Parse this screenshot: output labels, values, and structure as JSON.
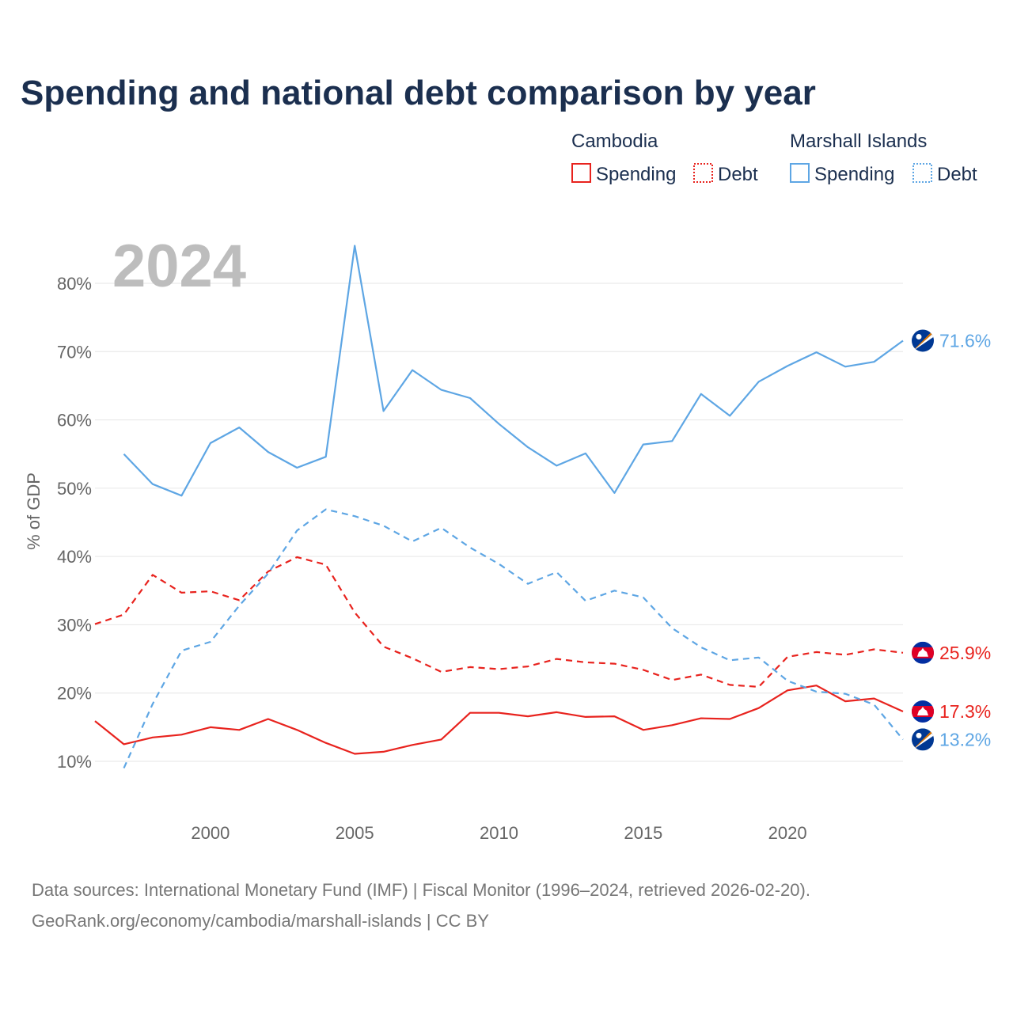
{
  "title": "Spending and national debt comparison by year",
  "year_label": "2024",
  "legend": {
    "groups": [
      {
        "name": "Cambodia",
        "color": "#e8231e",
        "items": [
          "Spending",
          "Debt"
        ]
      },
      {
        "name": "Marshall Islands",
        "color": "#5ea6e4",
        "items": [
          "Spending",
          "Debt"
        ]
      }
    ]
  },
  "source": {
    "line1": "Data sources: International Monetary Fund (IMF) | Fiscal Monitor (1996–2024, retrieved 2026-02-20).",
    "line2": "GeoRank.org/economy/cambodia/marshall-islands | CC BY"
  },
  "chart_data": {
    "type": "line",
    "ylabel": "% of GDP",
    "x_ticks": [
      2000,
      2005,
      2010,
      2015,
      2020
    ],
    "y_ticks": [
      10,
      20,
      30,
      40,
      50,
      60,
      70,
      80
    ],
    "y_tick_labels": [
      "10%",
      "20%",
      "30%",
      "40%",
      "50%",
      "60%",
      "70%",
      "80%"
    ],
    "xlim": [
      1996,
      2024
    ],
    "ylim": [
      10,
      80
    ],
    "grid": true,
    "series": [
      {
        "name": "Cambodia Spending",
        "country": "Cambodia",
        "metric": "Spending",
        "color": "#e8231e",
        "dashed": false,
        "flag": "cambodia-flag",
        "end_label": "17.3%",
        "x": [
          1996,
          1997,
          1998,
          1999,
          2000,
          2001,
          2002,
          2003,
          2004,
          2005,
          2006,
          2007,
          2008,
          2009,
          2010,
          2011,
          2012,
          2013,
          2014,
          2015,
          2016,
          2017,
          2018,
          2019,
          2020,
          2021,
          2022,
          2023,
          2024
        ],
        "values": [
          15.9,
          12.5,
          13.5,
          13.9,
          15.0,
          14.6,
          16.2,
          14.6,
          12.7,
          11.1,
          11.4,
          12.4,
          13.2,
          17.1,
          17.1,
          16.6,
          17.2,
          16.5,
          16.6,
          14.6,
          15.3,
          16.3,
          16.2,
          17.8,
          20.4,
          21.1,
          18.8,
          19.2,
          17.3
        ]
      },
      {
        "name": "Cambodia Debt",
        "country": "Cambodia",
        "metric": "Debt",
        "color": "#e8231e",
        "dashed": true,
        "flag": "cambodia-flag",
        "end_label": "25.9%",
        "x": [
          1996,
          1997,
          1998,
          1999,
          2000,
          2001,
          2002,
          2003,
          2004,
          2005,
          2006,
          2007,
          2008,
          2009,
          2010,
          2011,
          2012,
          2013,
          2014,
          2015,
          2016,
          2017,
          2018,
          2019,
          2020,
          2021,
          2022,
          2023,
          2024
        ],
        "values": [
          30.1,
          31.5,
          37.3,
          34.7,
          34.9,
          33.6,
          37.8,
          39.9,
          38.8,
          31.8,
          26.8,
          25.1,
          23.1,
          23.8,
          23.5,
          23.9,
          25.0,
          24.5,
          24.3,
          23.4,
          21.9,
          22.7,
          21.2,
          20.9,
          25.3,
          26.0,
          25.6,
          26.4,
          25.9
        ]
      },
      {
        "name": "Marshall Islands Spending",
        "country": "Marshall Islands",
        "metric": "Spending",
        "color": "#5ea6e4",
        "dashed": false,
        "flag": "marshall-islands-flag",
        "end_label": "71.6%",
        "x": [
          1997,
          1998,
          1999,
          2000,
          2001,
          2002,
          2003,
          2004,
          2005,
          2006,
          2007,
          2008,
          2009,
          2010,
          2011,
          2012,
          2013,
          2014,
          2015,
          2016,
          2017,
          2018,
          2019,
          2020,
          2021,
          2022,
          2023,
          2024
        ],
        "values": [
          55.0,
          50.6,
          48.9,
          56.6,
          58.9,
          55.3,
          53.0,
          54.6,
          85.5,
          61.3,
          67.3,
          64.4,
          63.2,
          59.4,
          56.0,
          53.3,
          55.1,
          49.3,
          56.4,
          56.9,
          63.8,
          60.6,
          65.6,
          67.9,
          69.9,
          67.8,
          68.5,
          71.6
        ]
      },
      {
        "name": "Marshall Islands Debt",
        "country": "Marshall Islands",
        "metric": "Debt",
        "color": "#5ea6e4",
        "dashed": true,
        "flag": "marshall-islands-flag",
        "end_label": "13.2%",
        "x": [
          1997,
          1998,
          1999,
          2000,
          2001,
          2002,
          2003,
          2004,
          2005,
          2006,
          2007,
          2008,
          2009,
          2010,
          2011,
          2012,
          2013,
          2014,
          2015,
          2016,
          2017,
          2018,
          2019,
          2020,
          2021,
          2022,
          2023,
          2024
        ],
        "values": [
          9.0,
          18.4,
          26.2,
          27.5,
          32.8,
          37.5,
          43.8,
          46.9,
          45.9,
          44.5,
          42.2,
          44.2,
          41.3,
          38.9,
          36.0,
          37.7,
          33.5,
          35.0,
          34.0,
          29.5,
          26.7,
          24.8,
          25.2,
          21.8,
          20.2,
          19.9,
          18.3,
          13.2
        ]
      }
    ]
  }
}
